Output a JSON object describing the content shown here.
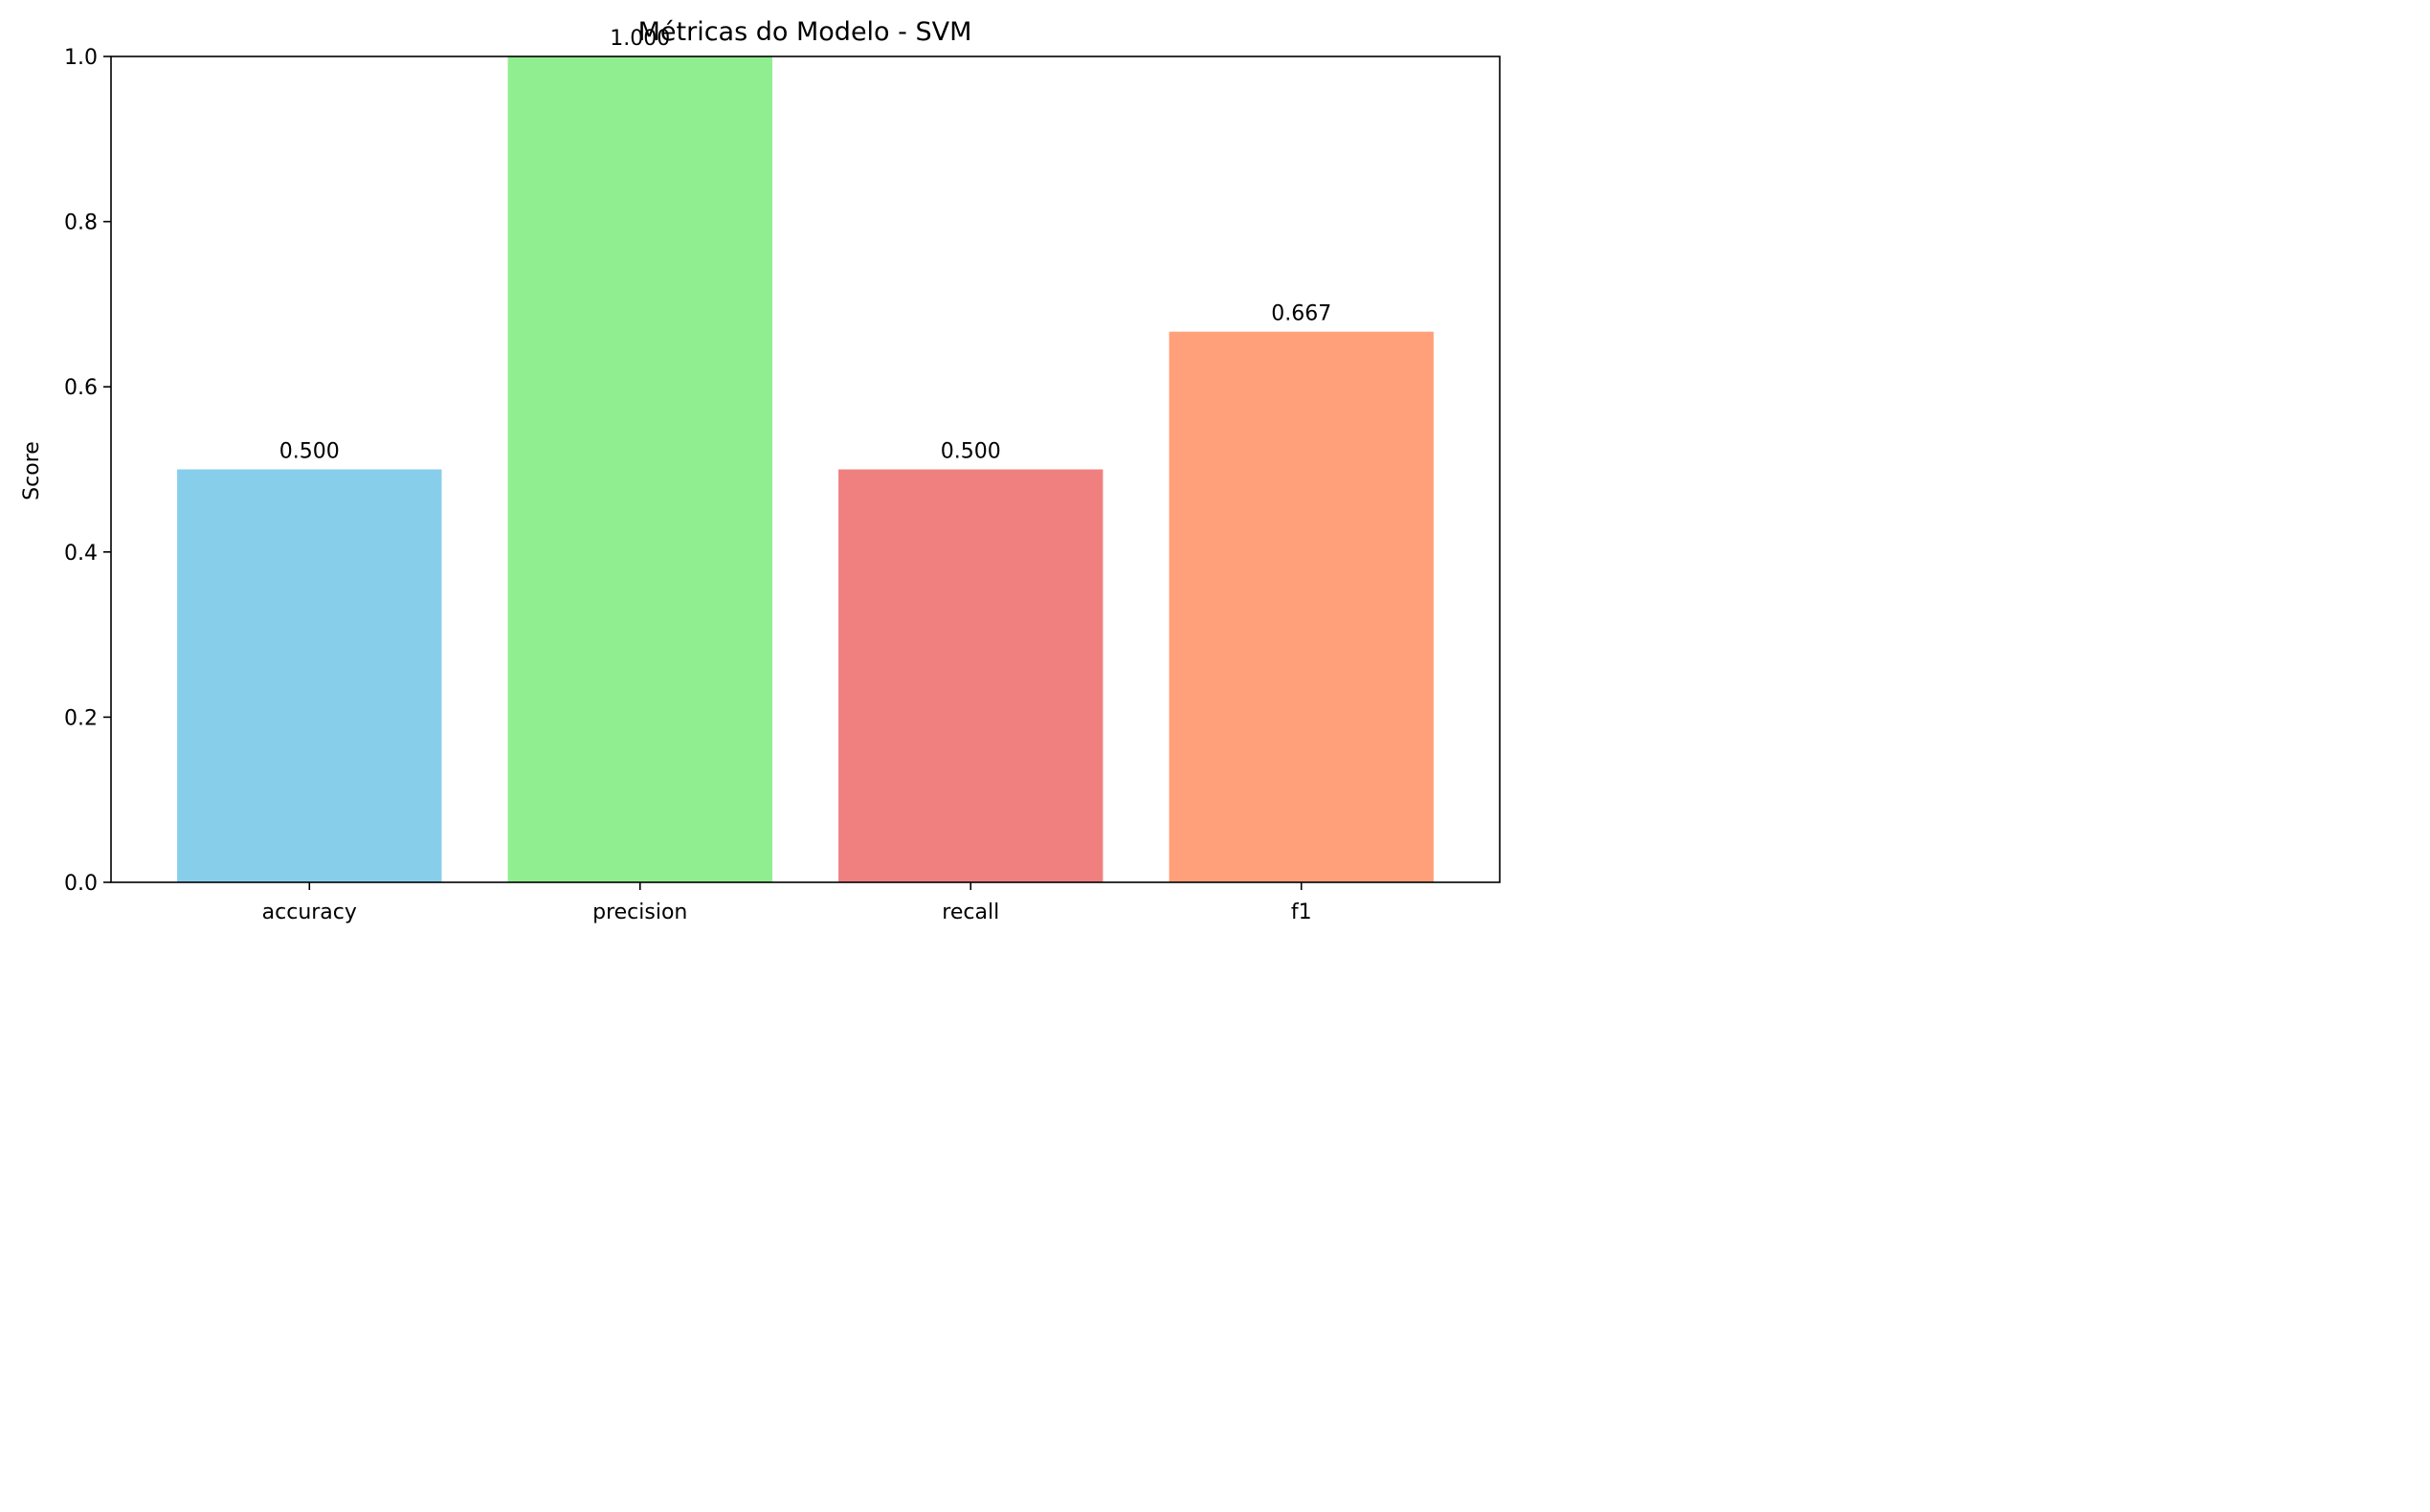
{
  "chart_data": {
    "type": "bar",
    "title": "Métricas do Modelo - SVM",
    "xlabel": "",
    "ylabel": "Score",
    "ylim": [
      0,
      1.0
    ],
    "yticks": [
      "0.0",
      "0.2",
      "0.4",
      "0.6",
      "0.8",
      "1.0"
    ],
    "categories": [
      "accuracy",
      "precision",
      "recall",
      "f1"
    ],
    "values": [
      0.5,
      1.0,
      0.5,
      0.6667
    ],
    "value_labels": [
      "0.500",
      "1.000",
      "0.500",
      "0.667"
    ],
    "colors": [
      "#87ceeb",
      "#90ee90",
      "#f08080",
      "#ffa07a"
    ],
    "grid": false,
    "legend": "none"
  }
}
